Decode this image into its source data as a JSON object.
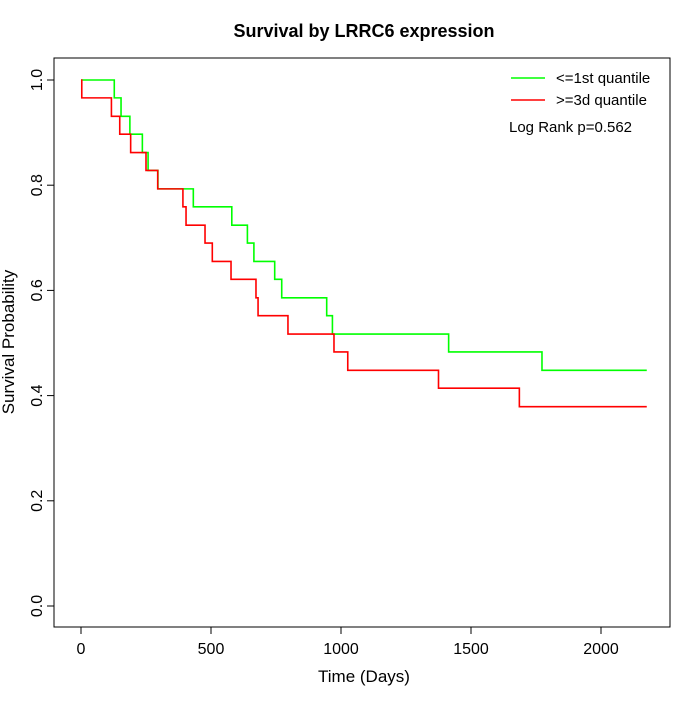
{
  "chart_data": {
    "type": "line",
    "step": true,
    "title": "Survival by LRRC6 expression",
    "xlabel": "Time (Days)",
    "ylabel": "Survival Probability",
    "xlim": [
      0,
      2180
    ],
    "ylim": [
      0,
      1
    ],
    "xticks": [
      0,
      500,
      1000,
      1500,
      2000
    ],
    "yticks": [
      0.0,
      0.2,
      0.4,
      0.6,
      0.8,
      1.0
    ],
    "xtick_labels": [
      "0",
      "500",
      "1000",
      "1500",
      "2000"
    ],
    "ytick_labels": [
      "0.0",
      "0.2",
      "0.4",
      "0.6",
      "0.8",
      "1.0"
    ],
    "grid": false,
    "legend_position": "top-right",
    "annotation": "Log Rank p=0.562",
    "series": [
      {
        "name": "<=1st quantile",
        "color": "#00ff00",
        "x": [
          0,
          128,
          154,
          188,
          236,
          258,
          296,
          432,
          580,
          640,
          665,
          745,
          772,
          945,
          967,
          1414,
          1773,
          2176
        ],
        "y": [
          1.0,
          0.966,
          0.931,
          0.897,
          0.862,
          0.828,
          0.793,
          0.759,
          0.724,
          0.69,
          0.655,
          0.621,
          0.586,
          0.552,
          0.517,
          0.483,
          0.448,
          0.448
        ]
      },
      {
        "name": ">=3d quantile",
        "color": "#ff0000",
        "x": [
          0,
          3,
          117,
          149,
          191,
          250,
          295,
          392,
          404,
          477,
          505,
          577,
          673,
          681,
          796,
          973,
          1026,
          1375,
          1686,
          2176
        ],
        "y": [
          1.0,
          0.966,
          0.931,
          0.897,
          0.862,
          0.828,
          0.793,
          0.759,
          0.724,
          0.69,
          0.655,
          0.621,
          0.586,
          0.552,
          0.517,
          0.483,
          0.448,
          0.414,
          0.379,
          0.379
        ]
      }
    ]
  }
}
